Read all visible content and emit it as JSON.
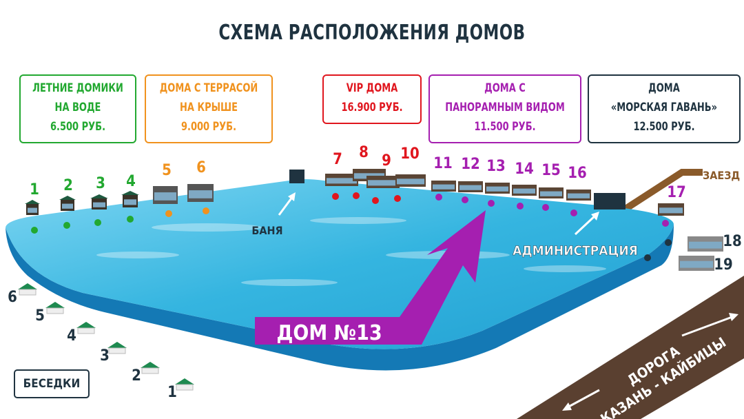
{
  "title": "СХЕМА РАСПОЛОЖЕНИЯ ДОМОВ",
  "legend": [
    {
      "lines": [
        "ЛЕТНИЕ ДОМИКИ",
        "НА ВОДЕ",
        "6.500 РУБ."
      ],
      "color": "#22a830"
    },
    {
      "lines": [
        "ДОМА С ТЕРРАСОЙ",
        "НА КРЫШЕ",
        "9.000 РУБ."
      ],
      "color": "#f0921e"
    },
    {
      "lines": [
        "VIP ДОМА",
        "16.900 РУБ."
      ],
      "color": "#e0161e"
    },
    {
      "lines": [
        "ДОМА С",
        "ПАНОРАМНЫМ ВИДОМ",
        "11.500 РУБ."
      ],
      "color": "#a51fb0"
    },
    {
      "lines": [
        "ДОМА",
        "«МОРСКАЯ ГАВАНЬ»",
        "12.500 РУБ."
      ],
      "color": "#1f3340"
    }
  ],
  "houses": [
    "1",
    "2",
    "3",
    "4",
    "5",
    "6",
    "7",
    "8",
    "9",
    "10",
    "11",
    "12",
    "13",
    "14",
    "15",
    "16",
    "17",
    "18",
    "19"
  ],
  "gazebos": [
    "1",
    "2",
    "3",
    "4",
    "5",
    "6"
  ],
  "labels": {
    "banya": "БАНЯ",
    "administration": "АДМИНИСТРАЦИЯ",
    "entrance": "ЗАЕЗД",
    "highlight": "ДОМ №13",
    "road_line1": "ДОРОГА",
    "road_line2": "КАЗАНЬ - КАЙБИЦЫ",
    "gazebos": "БЕСЕДКИ"
  },
  "colors": {
    "water": "#35b5e0",
    "water_side": "#1479b5",
    "road": "#5a4030",
    "entrance_road": "#8a5a2a",
    "highlight_arrow": "#a51fb0"
  }
}
